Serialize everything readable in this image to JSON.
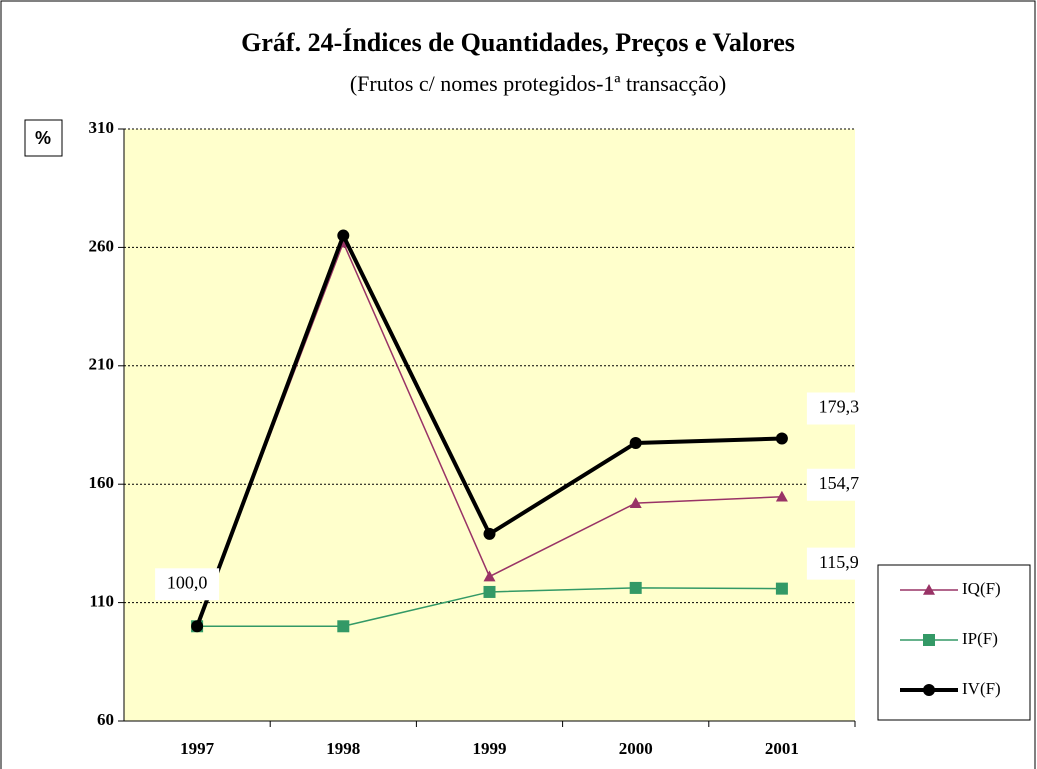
{
  "chart_data": {
    "type": "line",
    "title": "Gráf. 24-Índices de Quantidades, Preços e Valores",
    "subtitle": "(Frutos c/ nomes protegidos-1ª  transacção)",
    "y_label": "%",
    "categories": [
      "1997",
      "1998",
      "1999",
      "2000",
      "2001"
    ],
    "series": [
      {
        "name": "IQ(F)",
        "color": "#993366",
        "marker": "triangle",
        "values": [
          100,
          262,
          121,
          152,
          154.7
        ],
        "value_labels": [
          null,
          null,
          null,
          null,
          "154,7"
        ]
      },
      {
        "name": "IP(F)",
        "color": "#339966",
        "marker": "square",
        "values": [
          100,
          100,
          114.5,
          116.2,
          115.9
        ],
        "value_labels": [
          null,
          null,
          null,
          null,
          "115,9"
        ]
      },
      {
        "name": "IV(F)",
        "color": "#000000",
        "marker": "circle",
        "values": [
          100,
          265,
          139,
          177.4,
          179.3
        ],
        "value_labels": [
          "100,0",
          null,
          null,
          null,
          "179,3"
        ]
      }
    ],
    "ylim": [
      60,
      310
    ],
    "yticks": [
      60,
      110,
      160,
      210,
      260,
      310
    ],
    "grid": true,
    "legend": "lower right"
  }
}
